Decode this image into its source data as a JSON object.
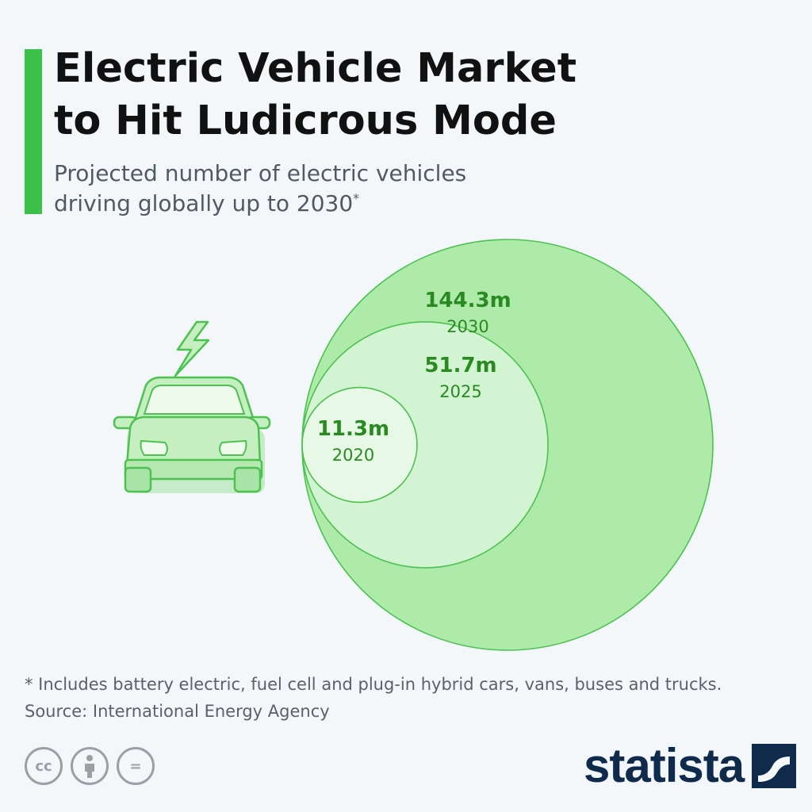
{
  "header": {
    "title_line1": "Electric Vehicle Market",
    "title_line2": "to Hit Ludicrous Mode",
    "subtitle_line1": "Projected number of electric vehicles",
    "subtitle_line2": "driving globally up to 2030",
    "subtitle_marker": "*"
  },
  "chart_data": {
    "type": "bubble",
    "categories": [
      "2020",
      "2025",
      "2030"
    ],
    "values": [
      11.3,
      51.7,
      144.3
    ],
    "value_labels": [
      "11.3m",
      "51.7m",
      "144.3m"
    ],
    "unit": "m",
    "fill_colors": [
      "#e8f8e6",
      "#d2f4d2",
      "#aeeaaa"
    ],
    "stroke_color": "#4cc250",
    "label_color": "#2a8a22"
  },
  "footer": {
    "footnote": "* Includes battery electric, fuel cell and plug-in hybrid cars, vans, buses and trucks.",
    "source": "Source: International Energy Agency",
    "license_icons": [
      "cc-icon",
      "attribution-icon",
      "no-derivatives-icon"
    ],
    "license_glyphs": [
      "cc",
      "",
      "="
    ],
    "brand": "statista"
  },
  "colors": {
    "accent": "#3cc14a",
    "background": "#f4f7fa",
    "brand_navy": "#0f2a4a"
  },
  "illustration": {
    "icon": "electric-car-icon",
    "bolt_icon": "lightning-bolt-icon"
  }
}
